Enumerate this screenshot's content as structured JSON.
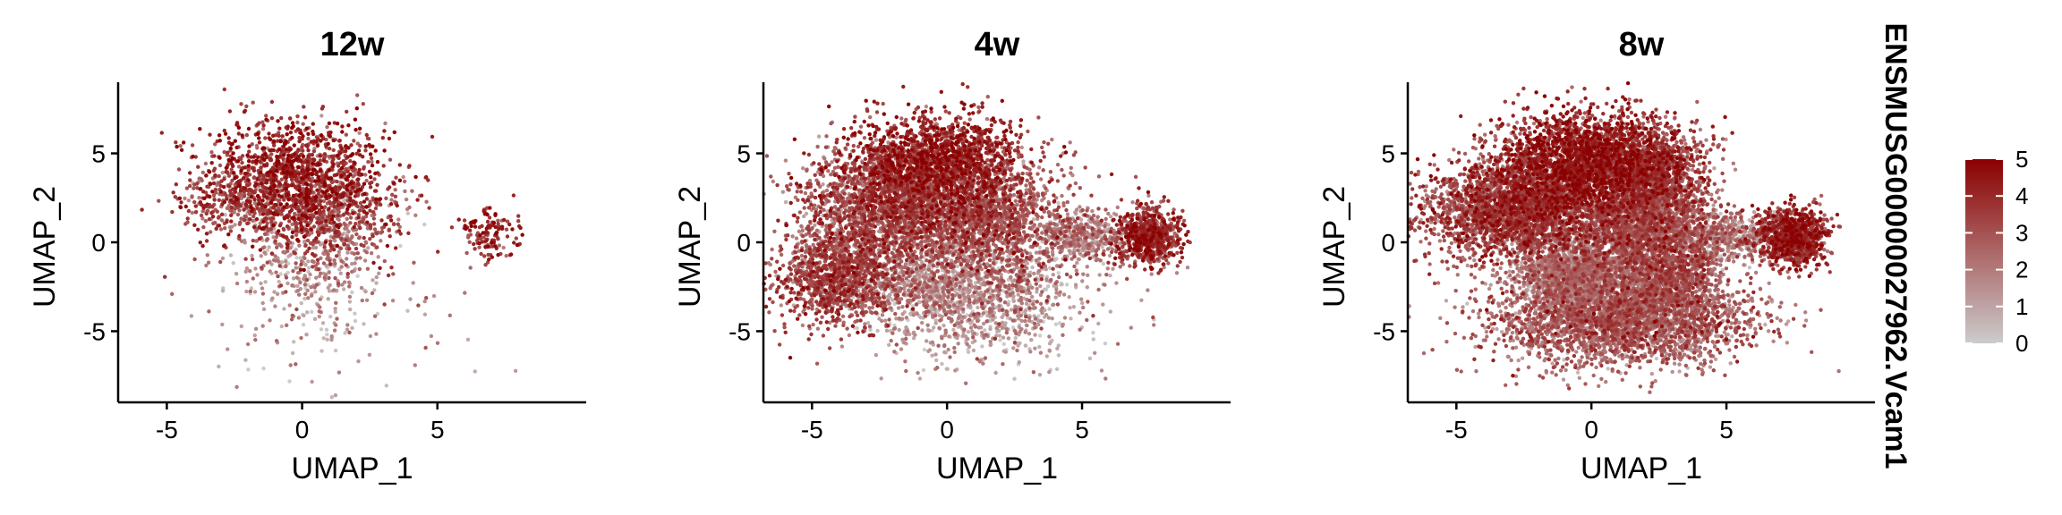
{
  "legend": {
    "title": "ENSMUSG00000027962.Vcam1",
    "ticks": [
      0,
      1,
      2,
      3,
      4,
      5
    ],
    "min": 0,
    "max": 5,
    "color_low": "#cccccc",
    "color_high": "#8b0000"
  },
  "chart_data": [
    {
      "type": "scatter",
      "title": "12w",
      "xlabel": "UMAP_1",
      "ylabel": "UMAP_2",
      "xlim": [
        -6.8,
        10.5
      ],
      "ylim": [
        -9,
        9
      ],
      "xticks": [
        -5,
        0,
        5
      ],
      "yticks": [
        -5,
        0,
        5
      ],
      "n_points": 2600,
      "color_scale": "ENSMUSG00000027962.Vcam1",
      "clusters": [
        {
          "cx": -0.3,
          "cy": 3.8,
          "sx": 1.7,
          "sy": 1.6,
          "w": 0.45,
          "expr": 3.9
        },
        {
          "cx": 1.0,
          "cy": 1.5,
          "sx": 1.5,
          "sy": 1.5,
          "w": 0.25,
          "expr": 2.9
        },
        {
          "cx": -2.5,
          "cy": 2.2,
          "sx": 1.0,
          "sy": 0.8,
          "w": 0.1,
          "expr": 3.0
        },
        {
          "cx": 0.2,
          "cy": -1.5,
          "sx": 1.5,
          "sy": 1.5,
          "w": 0.12,
          "expr": 1.4
        },
        {
          "cx": 7.0,
          "cy": 0.5,
          "sx": 0.55,
          "sy": 0.7,
          "w": 0.05,
          "expr": 3.7
        },
        {
          "cx": 1.0,
          "cy": -5.0,
          "sx": 2.5,
          "sy": 1.6,
          "w": 0.03,
          "expr": 1.3
        }
      ]
    },
    {
      "type": "scatter",
      "title": "4w",
      "xlabel": "UMAP_1",
      "ylabel": "UMAP_2",
      "xlim": [
        -6.8,
        10.5
      ],
      "ylim": [
        -9,
        9
      ],
      "xticks": [
        -5,
        0,
        5
      ],
      "yticks": [
        -5,
        0,
        5
      ],
      "n_points": 9000,
      "color_scale": "ENSMUSG00000027962.Vcam1",
      "clusters": [
        {
          "cx": -0.5,
          "cy": 4.6,
          "sx": 1.5,
          "sy": 1.3,
          "w": 0.18,
          "expr": 3.9
        },
        {
          "cx": -2.3,
          "cy": 2.0,
          "sx": 1.6,
          "sy": 1.5,
          "w": 0.2,
          "expr": 2.9
        },
        {
          "cx": 1.3,
          "cy": 1.5,
          "sx": 1.6,
          "sy": 1.6,
          "w": 0.18,
          "expr": 2.8
        },
        {
          "cx": -4.0,
          "cy": -2.0,
          "sx": 1.2,
          "sy": 1.3,
          "w": 0.12,
          "expr": 3.1
        },
        {
          "cx": 0.0,
          "cy": -2.2,
          "sx": 2.2,
          "sy": 1.2,
          "w": 0.14,
          "expr": 1.5
        },
        {
          "cx": 1.5,
          "cy": -4.5,
          "sx": 2.2,
          "sy": 1.3,
          "w": 0.05,
          "expr": 1.3
        },
        {
          "cx": 7.4,
          "cy": 0.3,
          "sx": 0.6,
          "sy": 0.8,
          "w": 0.08,
          "expr": 3.6
        },
        {
          "cx": 5.0,
          "cy": 0.3,
          "sx": 0.9,
          "sy": 0.7,
          "w": 0.05,
          "expr": 1.6
        }
      ]
    },
    {
      "type": "scatter",
      "title": "8w",
      "xlabel": "UMAP_1",
      "ylabel": "UMAP_2",
      "xlim": [
        -6.8,
        10.5
      ],
      "ylim": [
        -9,
        9
      ],
      "xticks": [
        -5,
        0,
        5
      ],
      "yticks": [
        -5,
        0,
        5
      ],
      "n_points": 15000,
      "color_scale": "ENSMUSG00000027962.Vcam1",
      "clusters": [
        {
          "cx": -0.3,
          "cy": 4.5,
          "sx": 1.6,
          "sy": 1.4,
          "w": 0.16,
          "expr": 3.9
        },
        {
          "cx": 2.3,
          "cy": 4.0,
          "sx": 1.0,
          "sy": 1.3,
          "w": 0.07,
          "expr": 3.2
        },
        {
          "cx": -2.8,
          "cy": 1.8,
          "sx": 1.6,
          "sy": 1.4,
          "w": 0.18,
          "expr": 3.1
        },
        {
          "cx": 1.8,
          "cy": 1.0,
          "sx": 1.3,
          "sy": 1.4,
          "w": 0.12,
          "expr": 2.7
        },
        {
          "cx": -0.6,
          "cy": -1.8,
          "sx": 1.0,
          "sy": 0.9,
          "w": 0.1,
          "expr": 1.6
        },
        {
          "cx": 1.0,
          "cy": -4.3,
          "sx": 2.3,
          "sy": 1.3,
          "w": 0.2,
          "expr": 2.4
        },
        {
          "cx": 2.8,
          "cy": -1.8,
          "sx": 1.0,
          "sy": 1.3,
          "w": 0.07,
          "expr": 2.5
        },
        {
          "cx": 7.4,
          "cy": 0.3,
          "sx": 0.6,
          "sy": 0.8,
          "w": 0.07,
          "expr": 3.6
        },
        {
          "cx": 5.0,
          "cy": 0.3,
          "sx": 0.9,
          "sy": 0.7,
          "w": 0.03,
          "expr": 1.6
        }
      ]
    }
  ]
}
